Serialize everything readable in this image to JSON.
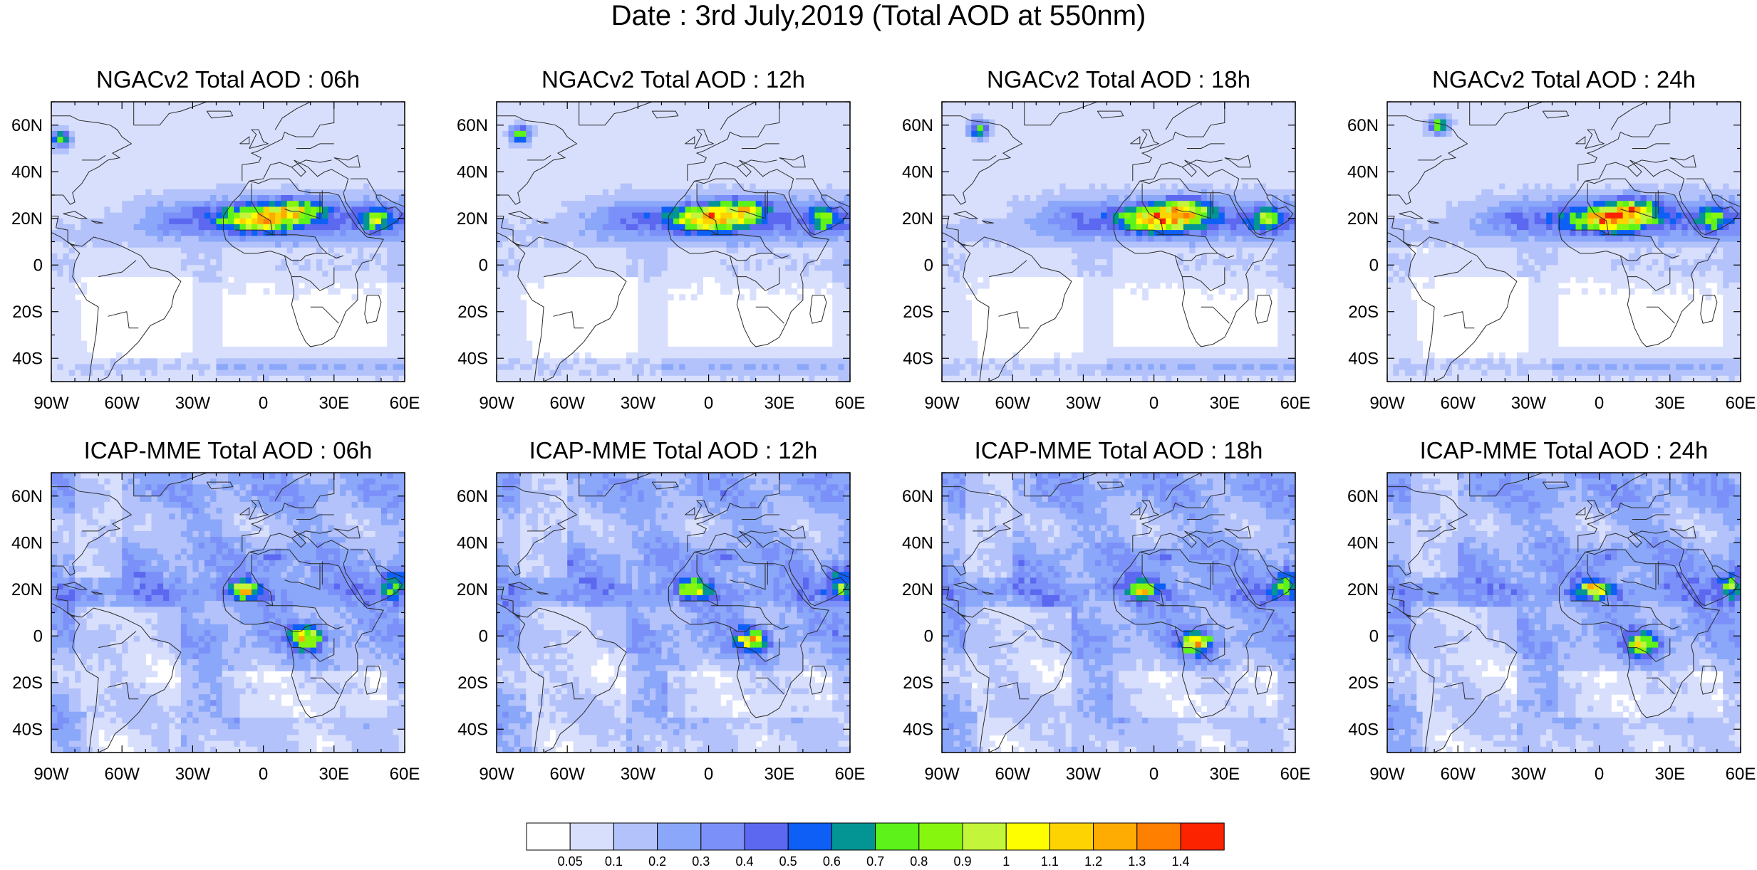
{
  "figure": {
    "title": "Date : 3rd July,2019 (Total AOD at 550nm)"
  },
  "panels": [
    {
      "title": "NGACv2 Total AOD : 06h",
      "model": "ngac"
    },
    {
      "title": "NGACv2 Total AOD : 12h",
      "model": "ngac"
    },
    {
      "title": "NGACv2 Total AOD : 18h",
      "model": "ngac"
    },
    {
      "title": "NGACv2 Total AOD : 24h",
      "model": "ngac"
    },
    {
      "title": "ICAP-MME Total AOD : 06h",
      "model": "icap"
    },
    {
      "title": "ICAP-MME Total AOD : 12h",
      "model": "icap"
    },
    {
      "title": "ICAP-MME Total AOD : 18h",
      "model": "icap"
    },
    {
      "title": "ICAP-MME Total AOD : 24h",
      "model": "icap"
    }
  ],
  "map_extent": {
    "lon": [
      -90,
      60
    ],
    "lat": [
      -50,
      70
    ]
  },
  "lon_ticks": [
    {
      "value": -90,
      "label": "90W"
    },
    {
      "value": -60,
      "label": "60W"
    },
    {
      "value": -30,
      "label": "30W"
    },
    {
      "value": 0,
      "label": "0"
    },
    {
      "value": 30,
      "label": "30E"
    },
    {
      "value": 60,
      "label": "60E"
    }
  ],
  "lat_ticks": [
    {
      "value": 60,
      "label": "60N"
    },
    {
      "value": 40,
      "label": "40N"
    },
    {
      "value": 20,
      "label": "20N"
    },
    {
      "value": 0,
      "label": "0"
    },
    {
      "value": -20,
      "label": "20S"
    },
    {
      "value": -40,
      "label": "40S"
    }
  ],
  "colorbar": {
    "colors": [
      "#ffffff",
      "#d8dffc",
      "#b4c2fb",
      "#8aa7f9",
      "#7b90f8",
      "#5c68ef",
      "#0d5ff5",
      "#039593",
      "#5cf21a",
      "#86f60f",
      "#c3f63a",
      "#fffe01",
      "#fed302",
      "#feac02",
      "#ff7f00",
      "#fb2300"
    ],
    "labels": [
      "0.05",
      "0.1",
      "0.2",
      "0.3",
      "0.4",
      "0.5",
      "0.6",
      "0.7",
      "0.8",
      "0.9",
      "1",
      "1.1",
      "1.2",
      "1.3",
      "1.4"
    ]
  },
  "colors": {
    "coastline": "#2a2a2a",
    "frame": "#000000"
  }
}
